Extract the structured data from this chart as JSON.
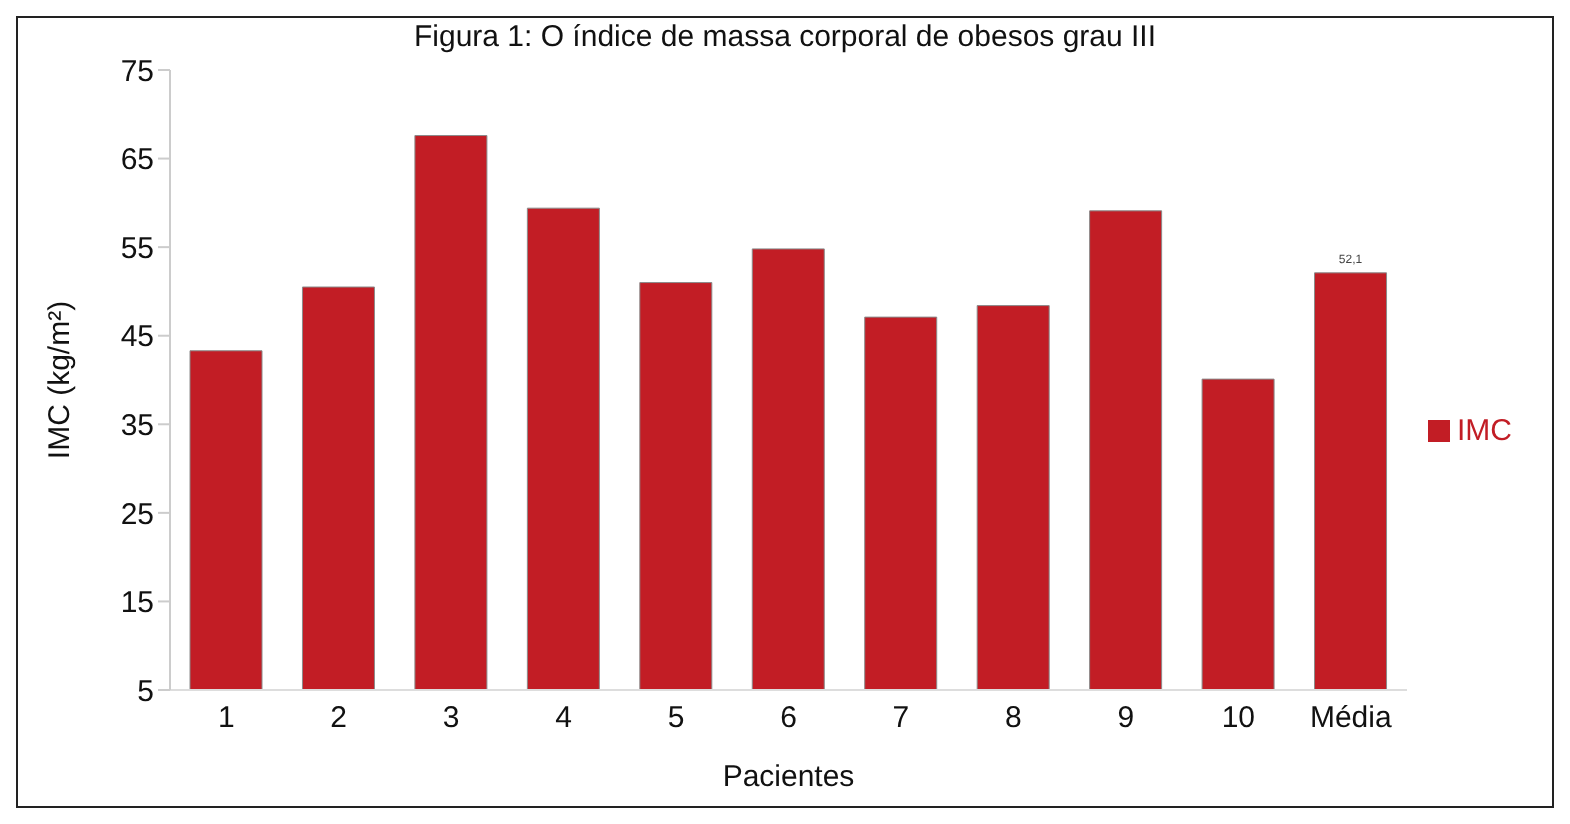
{
  "chart_data": {
    "type": "bar",
    "title": "Figura 1: O índice de massa corporal de obesos grau III",
    "xlabel": "Pacientes",
    "ylabel": "IMC (kg/m²)",
    "categories": [
      "1",
      "2",
      "3",
      "4",
      "5",
      "6",
      "7",
      "8",
      "9",
      "10",
      "Média"
    ],
    "series": [
      {
        "name": "IMC",
        "color": "#c21d25",
        "values": [
          43.3,
          50.5,
          67.6,
          59.4,
          51.0,
          54.8,
          47.1,
          48.4,
          59.1,
          40.1,
          52.1
        ],
        "value_labels": [
          null,
          null,
          null,
          null,
          null,
          null,
          null,
          null,
          null,
          null,
          "52,1"
        ]
      }
    ],
    "ylim": [
      5,
      75
    ],
    "yticks": [
      5,
      15,
      25,
      35,
      45,
      55,
      65,
      75
    ],
    "grid": false,
    "legend": "right"
  }
}
